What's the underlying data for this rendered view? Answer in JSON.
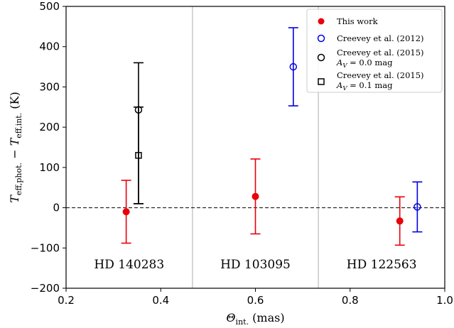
{
  "chart_data": {
    "type": "scatter",
    "xlabel": {
      "symbol": "Θ",
      "sub": "int.",
      "unit": " (mas)"
    },
    "ylabel": {
      "t1": "T",
      "s1": "eff,phot.",
      "minus": " − ",
      "t2": "T",
      "s2": "eff,int.",
      "unit": " (K)"
    },
    "xlim": [
      0.2,
      1.0
    ],
    "ylim": [
      -200,
      500
    ],
    "x_ticks": [
      0.2,
      0.4,
      0.6,
      0.8,
      1.0
    ],
    "x_tick_labels": [
      "0.2",
      "0.4",
      "0.6",
      "0.8",
      "1.0"
    ],
    "y_ticks": [
      -200,
      -100,
      0,
      100,
      200,
      300,
      400,
      500
    ],
    "y_tick_labels": [
      "−200",
      "−100",
      "0",
      "100",
      "200",
      "300",
      "400",
      "500"
    ],
    "grid": false,
    "legend_position": "top-right",
    "reference_line": {
      "y": 0,
      "style": "dashed",
      "color": "#000000"
    },
    "vertical_separators": [
      0.467,
      0.733
    ],
    "separator_color": "#c8c8c8",
    "series": [
      {
        "name": "This work",
        "marker": "filled-circle",
        "color": "#e8000b",
        "points": [
          {
            "x": 0.327,
            "y": -10,
            "err_low": 78,
            "err_high": 78
          },
          {
            "x": 0.6,
            "y": 28,
            "err_low": 93,
            "err_high": 93
          },
          {
            "x": 0.905,
            "y": -33,
            "err_low": 60,
            "err_high": 60
          }
        ]
      },
      {
        "name": "Creevey et al. (2012)",
        "marker": "open-circle",
        "color": "#0000e6",
        "points": [
          {
            "x": 0.68,
            "y": 350,
            "err_low": 97,
            "err_high": 97
          },
          {
            "x": 0.942,
            "y": 2,
            "err_low": 62,
            "err_high": 62
          }
        ]
      },
      {
        "name": "Creevey et al. (2015)",
        "sublabel": "A_V = 0.0 mag",
        "marker": "open-circle",
        "color": "#000000",
        "points": [
          {
            "x": 0.353,
            "y": 243,
            "err_low": 233,
            "err_high": 117
          }
        ]
      },
      {
        "name": "Creevey et al. (2015)",
        "sublabel": "A_V = 0.1 mag",
        "marker": "open-square",
        "color": "#000000",
        "points": [
          {
            "x": 0.353,
            "y": 130,
            "err_low": 120,
            "err_high": 120
          }
        ]
      }
    ],
    "legend": [
      {
        "label": "This work"
      },
      {
        "label": "Creevey et al. (2012)"
      },
      {
        "label": "Creevey et al. (2015)",
        "sub_a": "A",
        "sub_v": "V",
        "sub_rest": " = 0.0 mag"
      },
      {
        "label": "Creevey et al. (2015)",
        "sub_a": "A",
        "sub_v": "V",
        "sub_rest": " = 0.1 mag"
      }
    ],
    "annotations": [
      {
        "text": "HD 140283",
        "x": 0.3333,
        "y": -140
      },
      {
        "text": "HD 103095",
        "x": 0.6,
        "y": -140
      },
      {
        "text": "HD 122563",
        "x": 0.8667,
        "y": -140
      }
    ]
  }
}
